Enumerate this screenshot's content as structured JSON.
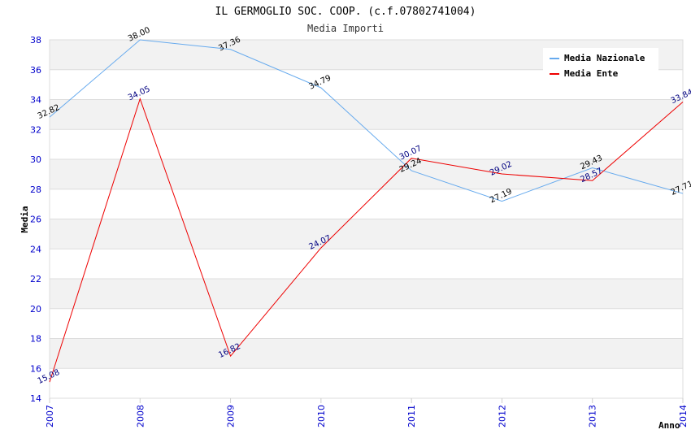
{
  "chart_data": {
    "type": "line",
    "title": "IL GERMOGLIO SOC. COOP. (c.f.07802741004)",
    "subtitle": "Media Importi",
    "xlabel": "Anno",
    "ylabel": "Media",
    "categories": [
      "2007",
      "2008",
      "2009",
      "2010",
      "2011",
      "2012",
      "2013",
      "2014"
    ],
    "ylim": [
      14,
      38
    ],
    "yticks": [
      14,
      16,
      18,
      20,
      22,
      24,
      26,
      28,
      30,
      32,
      34,
      36,
      38
    ],
    "grid": "horizontal alternating bands",
    "legend_position": "top-right",
    "series": [
      {
        "name": "Media Nazionale",
        "color": "#66aaee",
        "values": [
          32.82,
          38.0,
          37.36,
          34.79,
          29.24,
          27.19,
          29.43,
          27.71
        ],
        "labels": [
          "32.82",
          "38.00",
          "37.36",
          "34.79",
          "29.24",
          "27.19",
          "29.43",
          "27.71"
        ]
      },
      {
        "name": "Media Ente",
        "color": "#ee0000",
        "values": [
          15.08,
          34.05,
          16.82,
          24.07,
          30.07,
          29.02,
          28.57,
          33.84
        ],
        "labels": [
          "15.08",
          "34.05",
          "16.82",
          "24.07",
          "30.07",
          "29.02",
          "28.57",
          "33.84"
        ]
      }
    ]
  }
}
